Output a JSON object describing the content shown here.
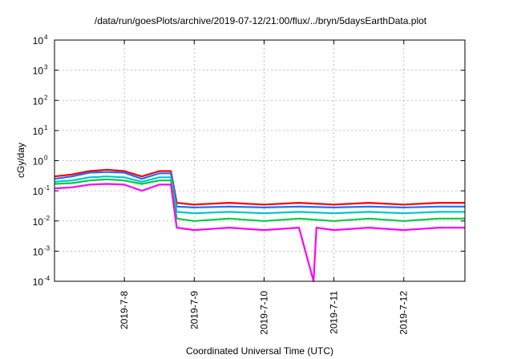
{
  "chart_data": {
    "type": "line",
    "title": "/data/run/goesPlots/archive/2019-07-12/21:00/flux/../bryn/5daysEarthData.plot",
    "xlabel": "Coordinated Universal Time (UTC)",
    "ylabel": "cGy/day",
    "yscale": "log",
    "ylim": [
      0.0001,
      10000
    ],
    "xlim": [
      "2019-07-07 00:00",
      "2019-07-12 21:00"
    ],
    "grid": true,
    "legend": "none",
    "y_ticks": [
      {
        "value": 0.0001,
        "mantissa": "10",
        "exp": "-4"
      },
      {
        "value": 0.001,
        "mantissa": "10",
        "exp": "-3"
      },
      {
        "value": 0.01,
        "mantissa": "10",
        "exp": "-2"
      },
      {
        "value": 0.1,
        "mantissa": "10",
        "exp": "-1"
      },
      {
        "value": 1,
        "mantissa": "10",
        "exp": "0"
      },
      {
        "value": 10,
        "mantissa": "10",
        "exp": "1"
      },
      {
        "value": 100,
        "mantissa": "10",
        "exp": "2"
      },
      {
        "value": 1000,
        "mantissa": "10",
        "exp": "3"
      },
      {
        "value": 10000,
        "mantissa": "10",
        "exp": "4"
      }
    ],
    "x_ticks": [
      {
        "label": "2019-7-8",
        "value": "2019-07-08 00:00"
      },
      {
        "label": "2019-7-9",
        "value": "2019-07-09 00:00"
      },
      {
        "label": "2019-7-10",
        "value": "2019-07-10 00:00"
      },
      {
        "label": "2019-7-11",
        "value": "2019-07-11 00:00"
      },
      {
        "label": "2019-7-12",
        "value": "2019-07-12 00:00"
      }
    ],
    "series": [
      {
        "color": "#ff0000",
        "x": [
          "2019-07-07 00:00",
          "2019-07-07 06:00",
          "2019-07-07 12:00",
          "2019-07-07 18:00",
          "2019-07-08 00:00",
          "2019-07-08 06:00",
          "2019-07-08 12:00",
          "2019-07-08 16:00",
          "2019-07-08 18:00",
          "2019-07-09 00:00",
          "2019-07-09 12:00",
          "2019-07-10 00:00",
          "2019-07-10 12:00",
          "2019-07-11 00:00",
          "2019-07-11 12:00",
          "2019-07-12 00:00",
          "2019-07-12 12:00",
          "2019-07-12 21:00"
        ],
        "values": [
          0.3,
          0.35,
          0.45,
          0.5,
          0.45,
          0.3,
          0.45,
          0.45,
          0.04,
          0.035,
          0.04,
          0.035,
          0.04,
          0.035,
          0.04,
          0.035,
          0.04,
          0.04
        ]
      },
      {
        "color": "#1e6fff",
        "x": [
          "2019-07-07 00:00",
          "2019-07-07 06:00",
          "2019-07-07 12:00",
          "2019-07-07 18:00",
          "2019-07-08 00:00",
          "2019-07-08 06:00",
          "2019-07-08 12:00",
          "2019-07-08 16:00",
          "2019-07-08 18:00",
          "2019-07-09 00:00",
          "2019-07-09 12:00",
          "2019-07-10 00:00",
          "2019-07-10 12:00",
          "2019-07-11 00:00",
          "2019-07-11 12:00",
          "2019-07-12 00:00",
          "2019-07-12 12:00",
          "2019-07-12 21:00"
        ],
        "values": [
          0.25,
          0.3,
          0.4,
          0.42,
          0.4,
          0.25,
          0.38,
          0.38,
          0.03,
          0.028,
          0.03,
          0.028,
          0.03,
          0.028,
          0.03,
          0.028,
          0.03,
          0.03
        ]
      },
      {
        "color": "#00c8c8",
        "x": [
          "2019-07-07 00:00",
          "2019-07-07 06:00",
          "2019-07-07 12:00",
          "2019-07-07 18:00",
          "2019-07-08 00:00",
          "2019-07-08 06:00",
          "2019-07-08 12:00",
          "2019-07-08 16:00",
          "2019-07-08 18:00",
          "2019-07-09 00:00",
          "2019-07-09 12:00",
          "2019-07-10 00:00",
          "2019-07-10 12:00",
          "2019-07-11 00:00",
          "2019-07-11 12:00",
          "2019-07-12 00:00",
          "2019-07-12 12:00",
          "2019-07-12 21:00"
        ],
        "values": [
          0.2,
          0.22,
          0.28,
          0.3,
          0.28,
          0.2,
          0.28,
          0.28,
          0.02,
          0.018,
          0.02,
          0.018,
          0.02,
          0.018,
          0.02,
          0.018,
          0.02,
          0.02
        ]
      },
      {
        "color": "#00cc44",
        "x": [
          "2019-07-07 00:00",
          "2019-07-07 06:00",
          "2019-07-07 12:00",
          "2019-07-07 18:00",
          "2019-07-08 00:00",
          "2019-07-08 06:00",
          "2019-07-08 12:00",
          "2019-07-08 16:00",
          "2019-07-08 18:00",
          "2019-07-09 00:00",
          "2019-07-09 12:00",
          "2019-07-10 00:00",
          "2019-07-10 12:00",
          "2019-07-11 00:00",
          "2019-07-11 12:00",
          "2019-07-12 00:00",
          "2019-07-12 12:00",
          "2019-07-12 21:00"
        ],
        "values": [
          0.17,
          0.18,
          0.22,
          0.24,
          0.22,
          0.17,
          0.22,
          0.22,
          0.012,
          0.01,
          0.012,
          0.01,
          0.012,
          0.01,
          0.012,
          0.01,
          0.012,
          0.012
        ]
      },
      {
        "color": "#ff00ff",
        "x": [
          "2019-07-07 00:00",
          "2019-07-07 06:00",
          "2019-07-07 12:00",
          "2019-07-07 18:00",
          "2019-07-08 00:00",
          "2019-07-08 06:00",
          "2019-07-08 12:00",
          "2019-07-08 16:00",
          "2019-07-08 18:00",
          "2019-07-09 00:00",
          "2019-07-09 12:00",
          "2019-07-10 00:00",
          "2019-07-10 12:00",
          "2019-07-10 17:00",
          "2019-07-10 18:00",
          "2019-07-11 00:00",
          "2019-07-11 12:00",
          "2019-07-12 00:00",
          "2019-07-12 12:00",
          "2019-07-12 21:00"
        ],
        "values": [
          0.12,
          0.13,
          0.16,
          0.17,
          0.16,
          0.1,
          0.16,
          0.16,
          0.006,
          0.005,
          0.006,
          0.005,
          0.006,
          0.0001,
          0.006,
          0.005,
          0.006,
          0.005,
          0.006,
          0.006
        ]
      }
    ]
  }
}
